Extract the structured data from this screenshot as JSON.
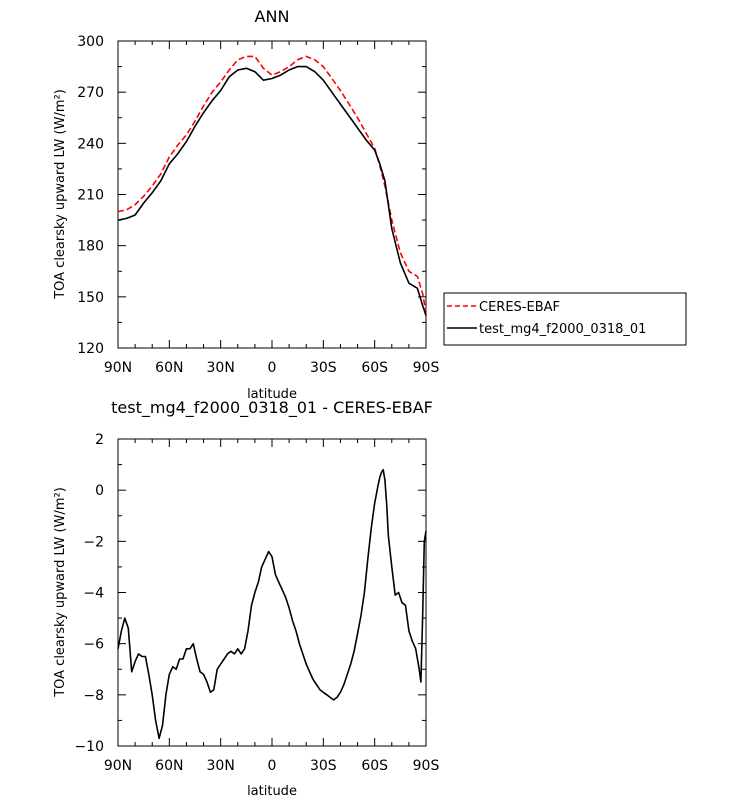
{
  "chart_data": [
    {
      "type": "line",
      "title": "ANN",
      "xlabel": "latitude",
      "ylabel": "TOA clearsky upward LW (W/m²)",
      "xlim": [
        90,
        -90
      ],
      "ylim": [
        120,
        300
      ],
      "xticks": [
        90,
        60,
        30,
        0,
        -30,
        -60,
        -90
      ],
      "xtick_labels": [
        "90N",
        "60N",
        "30N",
        "0",
        "30S",
        "60S",
        "90S"
      ],
      "yticks": [
        120,
        150,
        180,
        210,
        240,
        270,
        300
      ],
      "ytick_labels": [
        "120",
        "150",
        "180",
        "210",
        "240",
        "270",
        "300"
      ],
      "legend_position": "right",
      "series": [
        {
          "name": "CERES-EBAF",
          "color": "#ff0000",
          "style": "dashed",
          "x": [
            90,
            85,
            80,
            75,
            70,
            65,
            60,
            55,
            50,
            45,
            40,
            35,
            30,
            25,
            20,
            15,
            10,
            5,
            0,
            -5,
            -10,
            -15,
            -20,
            -25,
            -30,
            -35,
            -40,
            -45,
            -50,
            -55,
            -60,
            -63,
            -66,
            -70,
            -75,
            -80,
            -85,
            -88,
            -90
          ],
          "y": [
            200,
            201,
            204,
            209,
            215,
            222,
            232,
            239,
            245,
            253,
            262,
            270,
            276,
            283,
            289,
            291,
            291,
            284,
            280,
            282,
            285,
            289,
            291,
            289,
            285,
            278,
            271,
            263,
            255,
            246,
            237,
            227,
            215,
            195,
            176,
            165,
            162,
            152,
            141
          ]
        },
        {
          "name": "test_mg4_f2000_0318_01",
          "color": "#000000",
          "style": "solid",
          "x": [
            90,
            85,
            80,
            75,
            70,
            65,
            60,
            55,
            50,
            45,
            40,
            35,
            30,
            25,
            20,
            15,
            10,
            5,
            0,
            -5,
            -10,
            -15,
            -20,
            -25,
            -30,
            -35,
            -40,
            -45,
            -50,
            -55,
            -60,
            -63,
            -66,
            -70,
            -75,
            -80,
            -85,
            -88,
            -90
          ],
          "y": [
            195,
            196,
            198,
            205,
            211,
            218,
            228,
            234,
            241,
            250,
            258,
            265,
            271,
            279,
            283,
            284,
            282,
            277,
            278,
            280,
            283,
            285,
            285,
            282,
            277,
            270,
            263,
            256,
            249,
            242,
            236,
            228,
            218,
            190,
            170,
            158,
            155,
            145,
            139
          ]
        }
      ]
    },
    {
      "type": "line",
      "title": "test_mg4_f2000_0318_01 - CERES-EBAF",
      "xlabel": "latitude",
      "ylabel": "TOA clearsky upward LW (W/m²)",
      "xlim": [
        90,
        -90
      ],
      "ylim": [
        -10,
        2
      ],
      "xticks": [
        90,
        60,
        30,
        0,
        -30,
        -60,
        -90
      ],
      "xtick_labels": [
        "90N",
        "60N",
        "30N",
        "0",
        "30S",
        "60S",
        "90S"
      ],
      "yticks": [
        -10,
        -8,
        -6,
        -4,
        -2,
        0,
        2
      ],
      "ytick_labels": [
        "−10",
        "−8",
        "−6",
        "−4",
        "−2",
        "0",
        "2"
      ],
      "series": [
        {
          "color": "#000000",
          "style": "solid",
          "x": [
            90,
            88,
            86,
            84,
            82,
            80,
            78,
            76,
            74,
            72,
            70,
            68,
            66,
            64,
            62,
            60,
            58,
            56,
            54,
            52,
            50,
            48,
            46,
            44,
            42,
            40,
            38,
            36,
            34,
            32,
            30,
            28,
            26,
            24,
            22,
            20,
            18,
            16,
            14,
            12,
            10,
            8,
            6,
            4,
            2,
            0,
            -2,
            -4,
            -6,
            -8,
            -10,
            -12,
            -14,
            -16,
            -18,
            -20,
            -22,
            -24,
            -26,
            -28,
            -30,
            -32,
            -34,
            -36,
            -38,
            -40,
            -42,
            -44,
            -46,
            -48,
            -50,
            -52,
            -54,
            -56,
            -58,
            -60,
            -62,
            -63,
            -64,
            -65,
            -66,
            -67,
            -68,
            -70,
            -72,
            -74,
            -76,
            -78,
            -80,
            -82,
            -84,
            -86,
            -87,
            -88,
            -89,
            -90
          ],
          "y": [
            -6.2,
            -5.5,
            -5.0,
            -5.4,
            -7.1,
            -6.7,
            -6.4,
            -6.5,
            -6.5,
            -7.2,
            -8.0,
            -9.0,
            -9.7,
            -9.2,
            -8.0,
            -7.2,
            -6.9,
            -7.0,
            -6.6,
            -6.6,
            -6.2,
            -6.2,
            -6.0,
            -6.6,
            -7.1,
            -7.2,
            -7.5,
            -7.9,
            -7.8,
            -7.0,
            -6.8,
            -6.6,
            -6.4,
            -6.3,
            -6.4,
            -6.2,
            -6.4,
            -6.2,
            -5.5,
            -4.5,
            -4.0,
            -3.6,
            -3.0,
            -2.7,
            -2.4,
            -2.6,
            -3.3,
            -3.6,
            -3.9,
            -4.2,
            -4.6,
            -5.1,
            -5.5,
            -6.0,
            -6.4,
            -6.8,
            -7.1,
            -7.4,
            -7.6,
            -7.8,
            -7.9,
            -8.0,
            -8.1,
            -8.2,
            -8.1,
            -7.9,
            -7.6,
            -7.2,
            -6.8,
            -6.3,
            -5.6,
            -4.9,
            -4.0,
            -2.7,
            -1.5,
            -0.5,
            0.2,
            0.5,
            0.7,
            0.8,
            0.4,
            -0.5,
            -1.8,
            -3.0,
            -4.1,
            -4.0,
            -4.4,
            -4.5,
            -5.5,
            -5.9,
            -6.2,
            -7.0,
            -7.5,
            -5.0,
            -2.0,
            -1.6
          ]
        }
      ]
    }
  ]
}
